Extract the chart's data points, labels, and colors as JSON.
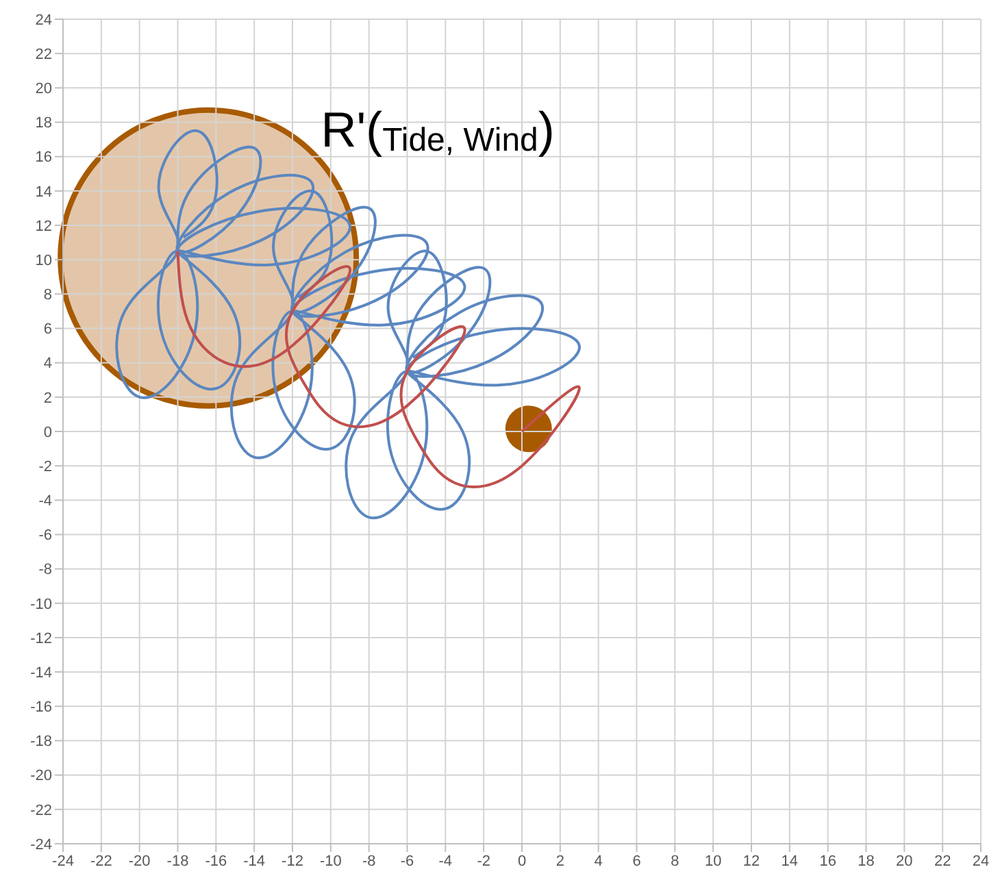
{
  "chart_data": {
    "type": "line",
    "title": "R'($_{Tide, Wind}$)",
    "xlim": [
      -24,
      24
    ],
    "xticks": [
      -24,
      -22,
      -20,
      -18,
      -16,
      -14,
      -12,
      -10,
      -8,
      -6,
      -4,
      -2,
      0,
      2,
      4,
      6,
      8,
      10,
      12,
      14,
      16,
      18,
      20,
      22,
      24
    ],
    "ylim": [
      -24,
      24
    ],
    "yticks": [
      -24,
      -22,
      -20,
      -18,
      -16,
      -14,
      -12,
      -10,
      -8,
      -6,
      -4,
      -2,
      0,
      2,
      4,
      6,
      8,
      10,
      12,
      14,
      16,
      18,
      20,
      22,
      24
    ],
    "grid": true,
    "legend": false,
    "marker": "none",
    "series": [
      {
        "color": "#5b87c0",
        "x": [
          -6,
          -5.2,
          -2,
          -2.8,
          -6,
          -3.3,
          1,
          -1.7,
          -6,
          -1.8,
          3,
          -1.2,
          -6,
          -3.1,
          -4,
          -6.9,
          -6,
          -5.1,
          -8,
          -8.9,
          -6,
          -7,
          -5,
          -4,
          -5.7
        ],
        "values": [
          3.5,
          7.3,
          9.5,
          5.7,
          3.5,
          6.9,
          7.5,
          4.1,
          3.5,
          5.8,
          5,
          2.7,
          3.5,
          0,
          -4.5,
          -1,
          3.5,
          -1.2,
          -5,
          -0.3,
          3.5,
          7.2,
          10.5,
          6.8,
          4.3
        ]
      },
      {
        "color": "#5b87c0",
        "x": [
          -12,
          -11.2,
          -8,
          -8.8,
          -12,
          -9.3,
          -5,
          -7.7,
          -12,
          -7.8,
          -3,
          -7.2,
          -12,
          -9.1,
          -10,
          -12.9,
          -12,
          -11.1,
          -14,
          -14.9,
          -12,
          -13,
          -11,
          -10,
          -11.7
        ],
        "values": [
          7,
          10.8,
          13,
          9.2,
          7,
          10.4,
          11,
          7.6,
          7,
          9.3,
          8.5,
          6.2,
          7,
          3.5,
          -1,
          2.5,
          7,
          2.3,
          -1.5,
          3.2,
          7,
          10.7,
          14,
          10.3,
          7.8
        ]
      },
      {
        "color": "#5b87c0",
        "x": [
          -18,
          -17.2,
          -14,
          -14.8,
          -18,
          -15.3,
          -11,
          -13.7,
          -18,
          -13.8,
          -9,
          -13.2,
          -18,
          -15.1,
          -16,
          -18.9,
          -18,
          -17.1,
          -20,
          -20.9,
          -18,
          -19,
          -17,
          -16,
          -17.7
        ],
        "values": [
          10.5,
          14.3,
          16.5,
          12.7,
          10.5,
          13.9,
          14.5,
          11.1,
          10.5,
          12.8,
          12,
          9.7,
          10.5,
          7,
          2.5,
          6,
          10.5,
          5.8,
          2,
          6.7,
          10.5,
          14.2,
          17.5,
          13.8,
          11.3
        ]
      },
      {
        "color": "#c0504d",
        "x": [
          -18,
          -17.5,
          -15.5,
          -12,
          -9,
          -12,
          -11.5,
          -9.5,
          -6,
          -3,
          -6,
          -5.5,
          -3.5,
          0,
          3,
          0
        ],
        "values": [
          10.5,
          6.5,
          4,
          5,
          9.5,
          7,
          3,
          0.5,
          1.5,
          6,
          3.5,
          -0.5,
          -3,
          -2,
          2.5,
          0
        ]
      }
    ]
  }
}
